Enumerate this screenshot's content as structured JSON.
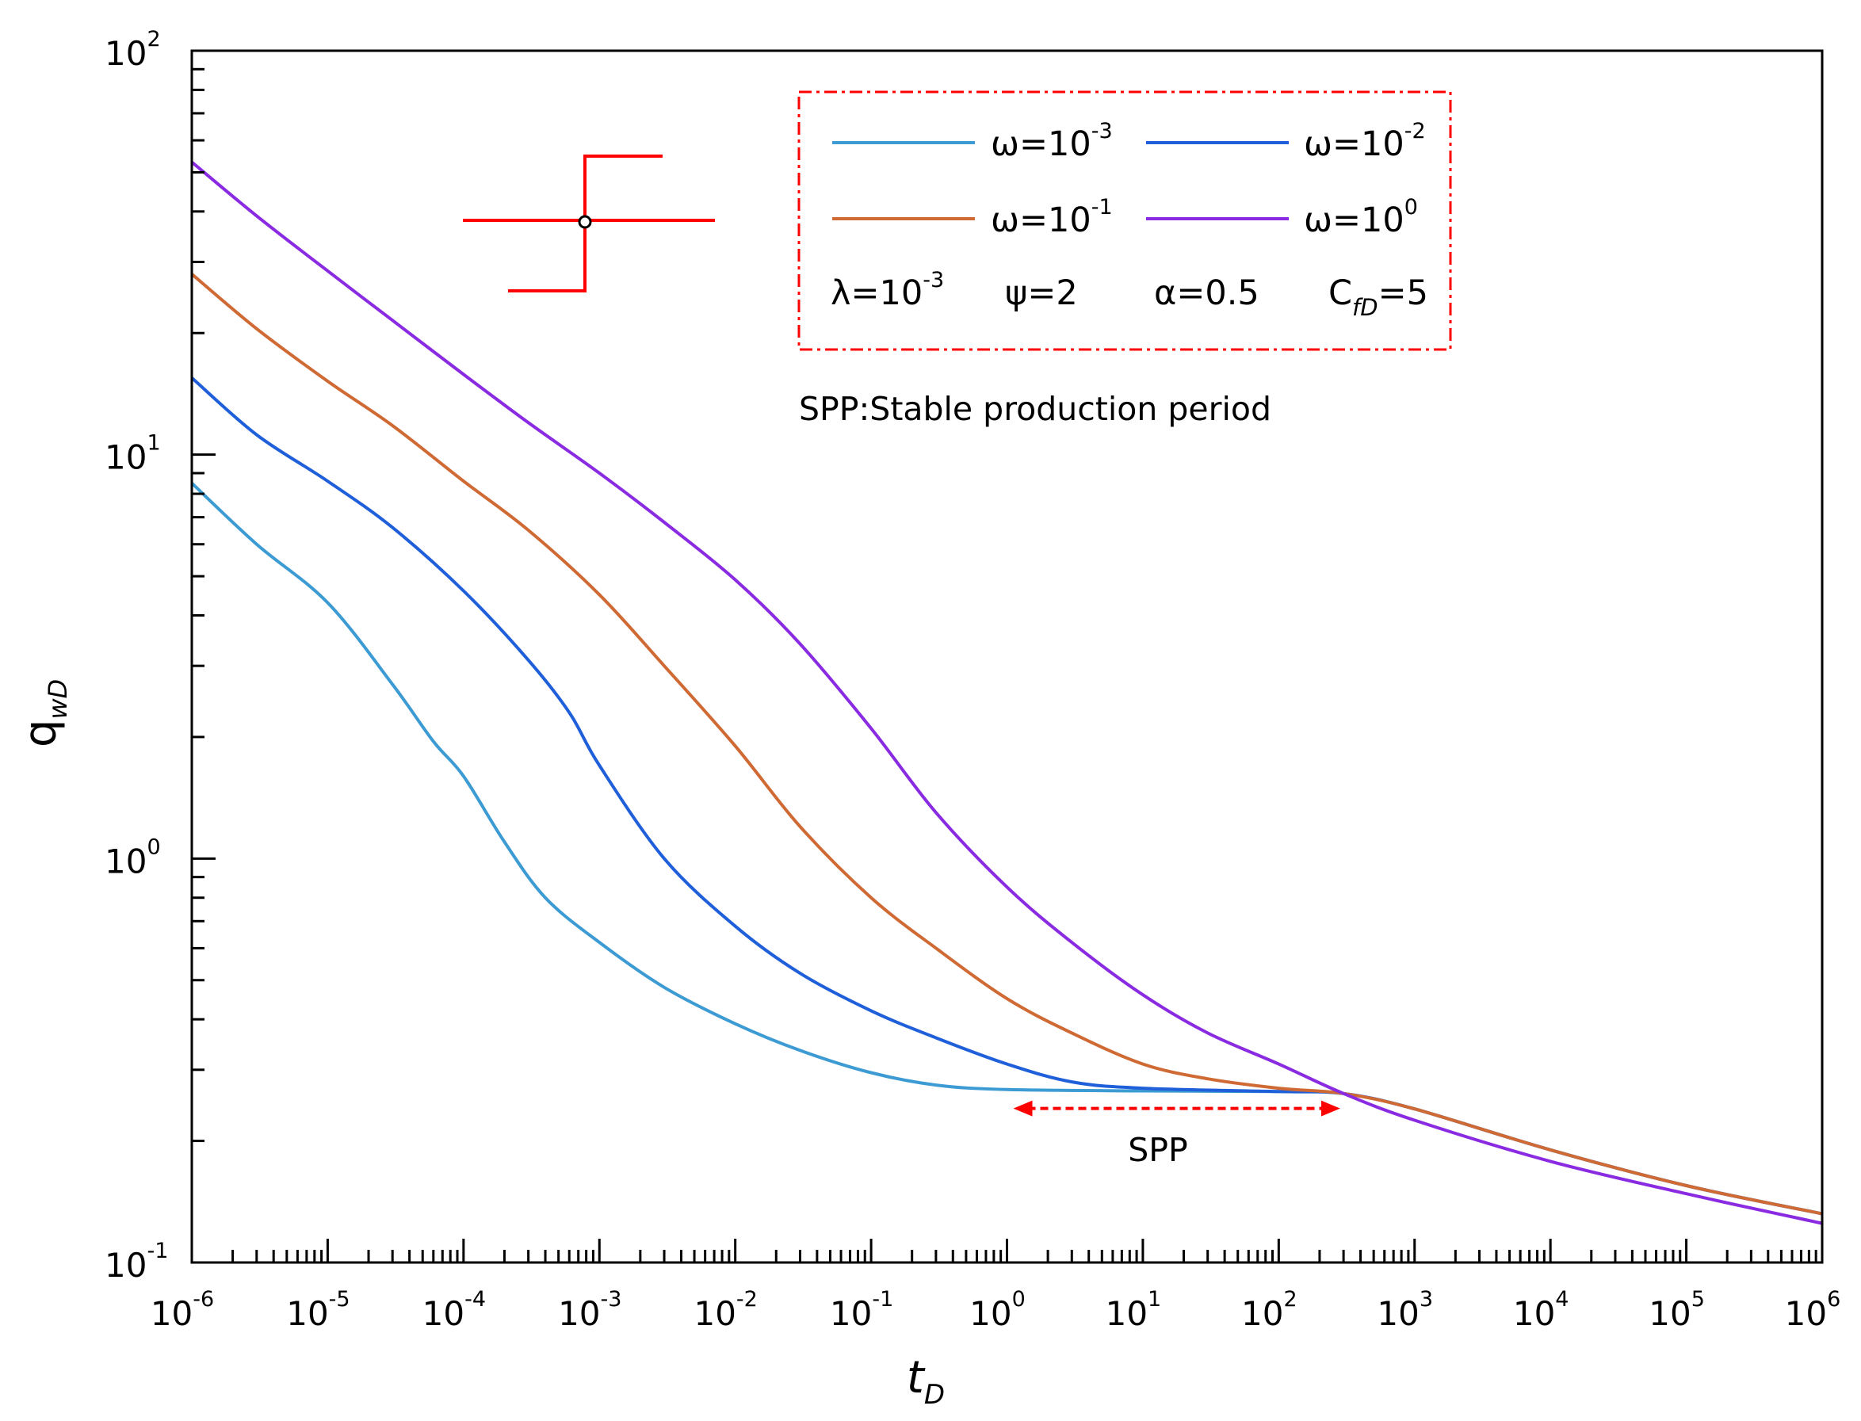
{
  "chart_data": {
    "type": "line",
    "scale": {
      "x": "log",
      "y": "log"
    },
    "xlim": [
      1e-06,
      1000000.0
    ],
    "ylim": [
      0.1,
      100
    ],
    "xlabel": {
      "main": "t",
      "sub": "D"
    },
    "ylabel": {
      "main": "q",
      "sub": "wD"
    },
    "x_ticks": [
      {
        "base": "10",
        "exp": "-6"
      },
      {
        "base": "10",
        "exp": "-5"
      },
      {
        "base": "10",
        "exp": "-4"
      },
      {
        "base": "10",
        "exp": "-3"
      },
      {
        "base": "10",
        "exp": "-2"
      },
      {
        "base": "10",
        "exp": "-1"
      },
      {
        "base": "10",
        "exp": "0"
      },
      {
        "base": "10",
        "exp": "1"
      },
      {
        "base": "10",
        "exp": "2"
      },
      {
        "base": "10",
        "exp": "3"
      },
      {
        "base": "10",
        "exp": "4"
      },
      {
        "base": "10",
        "exp": "5"
      },
      {
        "base": "10",
        "exp": "6"
      }
    ],
    "y_ticks": [
      {
        "base": "10",
        "exp": "-1"
      },
      {
        "base": "10",
        "exp": "0"
      },
      {
        "base": "10",
        "exp": "1"
      },
      {
        "base": "10",
        "exp": "2"
      }
    ],
    "series": [
      {
        "name": "ω=10-3",
        "label_base": "ω=10",
        "label_exp": "-3",
        "color": "#3d9bd4",
        "points": [
          [
            1e-06,
            8.5
          ],
          [
            3e-06,
            6.0
          ],
          [
            1e-05,
            4.3
          ],
          [
            3e-05,
            2.7
          ],
          [
            6e-05,
            1.95
          ],
          [
            0.0001,
            1.6
          ],
          [
            0.0002,
            1.1
          ],
          [
            0.0004,
            0.8
          ],
          [
            0.001,
            0.62
          ],
          [
            0.003,
            0.48
          ],
          [
            0.01,
            0.39
          ],
          [
            0.03,
            0.335
          ],
          [
            0.1,
            0.295
          ],
          [
            0.3,
            0.275
          ],
          [
            1,
            0.268
          ],
          [
            10,
            0.266
          ],
          [
            100,
            0.265
          ],
          [
            300,
            0.262
          ],
          [
            1000,
            0.24
          ],
          [
            10000.0,
            0.19
          ],
          [
            100000.0,
            0.155
          ],
          [
            1000000.0,
            0.132
          ]
        ]
      },
      {
        "name": "ω=10-2",
        "label_base": "ω=10",
        "label_exp": "-2",
        "color": "#1f5fd9",
        "points": [
          [
            1e-06,
            15.5
          ],
          [
            3e-06,
            11.2
          ],
          [
            1e-05,
            8.6
          ],
          [
            3e-05,
            6.6
          ],
          [
            0.0001,
            4.6
          ],
          [
            0.0003,
            3.1
          ],
          [
            0.0006,
            2.3
          ],
          [
            0.001,
            1.7
          ],
          [
            0.003,
            1.0
          ],
          [
            0.01,
            0.68
          ],
          [
            0.03,
            0.52
          ],
          [
            0.1,
            0.42
          ],
          [
            0.3,
            0.36
          ],
          [
            1,
            0.31
          ],
          [
            3,
            0.28
          ],
          [
            10,
            0.27
          ],
          [
            100,
            0.265
          ],
          [
            300,
            0.262
          ],
          [
            1000,
            0.24
          ],
          [
            10000.0,
            0.19
          ],
          [
            100000.0,
            0.155
          ],
          [
            1000000.0,
            0.132
          ]
        ]
      },
      {
        "name": "ω=10-1",
        "label_base": "ω=10",
        "label_exp": "-1",
        "color": "#cf6a34",
        "points": [
          [
            1e-06,
            28
          ],
          [
            3e-06,
            20.5
          ],
          [
            1e-05,
            15.2
          ],
          [
            3e-05,
            11.8
          ],
          [
            0.0001,
            8.6
          ],
          [
            0.0003,
            6.5
          ],
          [
            0.001,
            4.5
          ],
          [
            0.003,
            3.0
          ],
          [
            0.01,
            1.9
          ],
          [
            0.03,
            1.2
          ],
          [
            0.1,
            0.8
          ],
          [
            0.3,
            0.6
          ],
          [
            1,
            0.45
          ],
          [
            3,
            0.37
          ],
          [
            10,
            0.31
          ],
          [
            30,
            0.285
          ],
          [
            100,
            0.27
          ],
          [
            300,
            0.262
          ],
          [
            1000,
            0.24
          ],
          [
            10000.0,
            0.19
          ],
          [
            100000.0,
            0.155
          ],
          [
            1000000.0,
            0.132
          ]
        ]
      },
      {
        "name": "ω=100",
        "label_base": "ω=10",
        "label_exp": "0",
        "color": "#8a2be2",
        "points": [
          [
            1e-06,
            53
          ],
          [
            3e-06,
            39
          ],
          [
            1e-05,
            28.5
          ],
          [
            3e-05,
            21.5
          ],
          [
            0.0001,
            15.8
          ],
          [
            0.0003,
            12
          ],
          [
            0.001,
            9
          ],
          [
            0.003,
            6.8
          ],
          [
            0.01,
            4.9
          ],
          [
            0.03,
            3.4
          ],
          [
            0.1,
            2.1
          ],
          [
            0.3,
            1.3
          ],
          [
            1,
            0.85
          ],
          [
            3,
            0.62
          ],
          [
            10,
            0.46
          ],
          [
            30,
            0.37
          ],
          [
            100,
            0.31
          ],
          [
            300,
            0.262
          ],
          [
            1000,
            0.225
          ],
          [
            10000.0,
            0.178
          ],
          [
            100000.0,
            0.148
          ],
          [
            1000000.0,
            0.125
          ]
        ]
      }
    ],
    "legend": {
      "placement": "top-center",
      "params": [
        {
          "base": "λ=10",
          "exp": "-3"
        },
        {
          "text": "ψ=2"
        },
        {
          "text": "α=0.5"
        },
        {
          "base": "C",
          "sub": "fD",
          "tail": "=5"
        }
      ]
    },
    "annotation": {
      "note": "SPP:Stable production period",
      "arrow_label": "SPP",
      "arrow_range": [
        1,
        200
      ],
      "arrow_y": 0.245,
      "arrow_color": "#ff0000"
    },
    "schematic_icon": {
      "name": "fracture-well-schematic",
      "color": "#ff0000"
    }
  }
}
